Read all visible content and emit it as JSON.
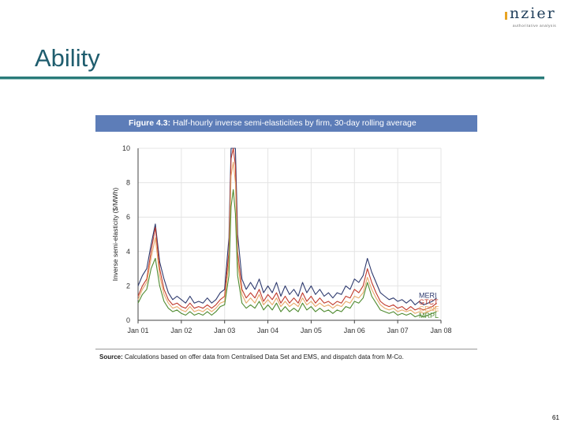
{
  "slide": {
    "title": "Ability",
    "page_number": "61"
  },
  "logo": {
    "wordmark": "nzier",
    "tagline": "authoritative analysis",
    "dot_color": "#e8a423",
    "word_color": "#1f3e5a"
  },
  "figure": {
    "label_prefix": "Figure 4.3:",
    "label_text": "Half-hourly inverse semi-elasticities by firm, 30-day rolling average",
    "band_color": "#5d7db8"
  },
  "source": {
    "prefix": "Source:",
    "text": "Calculations based on offer data from Centralised Data Set and EMS, and dispatch data from M-Co."
  },
  "chart_data": {
    "type": "line",
    "title": "Half-hourly inverse semi-elasticities by firm, 30-day rolling average",
    "xlabel": "",
    "ylabel": "Inverse semi-elasticity ($/MWh)",
    "ylim": [
      0,
      10
    ],
    "yticks": [
      0,
      2,
      4,
      6,
      8,
      10
    ],
    "xlim": [
      2001.0,
      2008.0
    ],
    "xticks": [
      {
        "x": 2001.0,
        "label": "Jan 01"
      },
      {
        "x": 2002.0,
        "label": "Jan 02"
      },
      {
        "x": 2003.0,
        "label": "Jan 03"
      },
      {
        "x": 2004.0,
        "label": "Jan 04"
      },
      {
        "x": 2005.0,
        "label": "Jan 05"
      },
      {
        "x": 2006.0,
        "label": "Jan 06"
      },
      {
        "x": 2007.0,
        "label": "Jan 07"
      },
      {
        "x": 2008.0,
        "label": "Jan 08"
      }
    ],
    "grid": true,
    "legend": "right, at end of series",
    "x": [
      2001.0,
      2001.1,
      2001.2,
      2001.3,
      2001.4,
      2001.5,
      2001.6,
      2001.7,
      2001.8,
      2001.9,
      2002.0,
      2002.1,
      2002.2,
      2002.3,
      2002.4,
      2002.5,
      2002.6,
      2002.7,
      2002.8,
      2002.9,
      2003.0,
      2003.1,
      2003.15,
      2003.2,
      2003.25,
      2003.3,
      2003.4,
      2003.5,
      2003.6,
      2003.7,
      2003.8,
      2003.9,
      2004.0,
      2004.1,
      2004.2,
      2004.3,
      2004.4,
      2004.5,
      2004.6,
      2004.7,
      2004.8,
      2004.9,
      2005.0,
      2005.1,
      2005.2,
      2005.3,
      2005.4,
      2005.5,
      2005.6,
      2005.7,
      2005.8,
      2005.9,
      2006.0,
      2006.1,
      2006.2,
      2006.3,
      2006.4,
      2006.5,
      2006.6,
      2006.7,
      2006.8,
      2006.9,
      2007.0,
      2007.1,
      2007.2,
      2007.3,
      2007.4,
      2007.5,
      2007.6,
      2007.7,
      2007.8,
      2007.9
    ],
    "series": [
      {
        "name": "MERI",
        "color": "#2e3a6e",
        "values": [
          2.0,
          2.6,
          3.0,
          4.4,
          5.6,
          3.4,
          2.4,
          1.6,
          1.2,
          1.4,
          1.2,
          1.0,
          1.4,
          1.0,
          1.1,
          1.0,
          1.3,
          1.0,
          1.2,
          1.6,
          1.8,
          4.8,
          10.0,
          10.0,
          10.0,
          5.0,
          2.4,
          1.8,
          2.2,
          1.8,
          2.4,
          1.6,
          2.0,
          1.6,
          2.2,
          1.4,
          2.0,
          1.5,
          1.8,
          1.4,
          2.2,
          1.6,
          2.0,
          1.5,
          1.8,
          1.4,
          1.6,
          1.3,
          1.6,
          1.5,
          2.0,
          1.8,
          2.4,
          2.2,
          2.6,
          3.6,
          2.8,
          2.2,
          1.6,
          1.4,
          1.2,
          1.3,
          1.1,
          1.2,
          1.0,
          1.2,
          0.9,
          1.1,
          0.9,
          1.0,
          1.1,
          1.3
        ]
      },
      {
        "name": "GTCT",
        "color": "#c0392b",
        "values": [
          1.4,
          2.0,
          2.4,
          4.0,
          5.4,
          3.0,
          1.8,
          1.2,
          0.9,
          1.0,
          0.8,
          0.7,
          1.0,
          0.7,
          0.8,
          0.7,
          0.9,
          0.7,
          0.9,
          1.2,
          1.4,
          4.0,
          9.4,
          10.0,
          9.0,
          4.0,
          1.8,
          1.3,
          1.6,
          1.3,
          1.8,
          1.1,
          1.5,
          1.2,
          1.6,
          1.0,
          1.4,
          1.0,
          1.3,
          1.0,
          1.6,
          1.1,
          1.4,
          1.0,
          1.3,
          1.0,
          1.1,
          0.9,
          1.1,
          1.0,
          1.4,
          1.3,
          1.8,
          1.6,
          2.0,
          3.0,
          2.2,
          1.6,
          1.1,
          0.9,
          0.8,
          0.9,
          0.7,
          0.8,
          0.6,
          0.8,
          0.6,
          0.7,
          0.6,
          0.7,
          0.8,
          1.0
        ]
      },
      {
        "name": "GENE",
        "color": "#e8a96a",
        "values": [
          1.2,
          1.8,
          2.2,
          3.6,
          4.8,
          2.6,
          1.5,
          1.0,
          0.7,
          0.8,
          0.6,
          0.5,
          0.8,
          0.5,
          0.6,
          0.5,
          0.7,
          0.5,
          0.7,
          1.0,
          1.1,
          3.4,
          8.4,
          9.2,
          8.0,
          3.4,
          1.5,
          1.0,
          1.3,
          1.0,
          1.5,
          0.9,
          1.2,
          0.9,
          1.3,
          0.8,
          1.1,
          0.8,
          1.0,
          0.8,
          1.3,
          0.9,
          1.1,
          0.8,
          1.0,
          0.8,
          0.9,
          0.7,
          0.9,
          0.8,
          1.1,
          1.0,
          1.4,
          1.3,
          1.6,
          2.5,
          1.8,
          1.3,
          0.9,
          0.7,
          0.6,
          0.7,
          0.5,
          0.6,
          0.5,
          0.6,
          0.4,
          0.5,
          0.4,
          0.5,
          0.6,
          0.8
        ]
      },
      {
        "name": "MRPL",
        "color": "#4e8a2f",
        "values": [
          1.0,
          1.5,
          1.8,
          3.0,
          3.6,
          2.0,
          1.1,
          0.7,
          0.5,
          0.6,
          0.4,
          0.3,
          0.5,
          0.3,
          0.4,
          0.3,
          0.5,
          0.3,
          0.5,
          0.8,
          0.9,
          2.6,
          6.6,
          7.6,
          6.2,
          2.6,
          1.0,
          0.7,
          0.9,
          0.7,
          1.1,
          0.6,
          0.9,
          0.6,
          1.0,
          0.5,
          0.8,
          0.5,
          0.7,
          0.5,
          1.0,
          0.6,
          0.8,
          0.5,
          0.7,
          0.5,
          0.6,
          0.4,
          0.6,
          0.5,
          0.8,
          0.7,
          1.1,
          1.0,
          1.3,
          2.2,
          1.4,
          1.0,
          0.6,
          0.5,
          0.4,
          0.5,
          0.3,
          0.4,
          0.3,
          0.4,
          0.2,
          0.3,
          0.2,
          0.3,
          0.4,
          0.5
        ]
      }
    ]
  }
}
